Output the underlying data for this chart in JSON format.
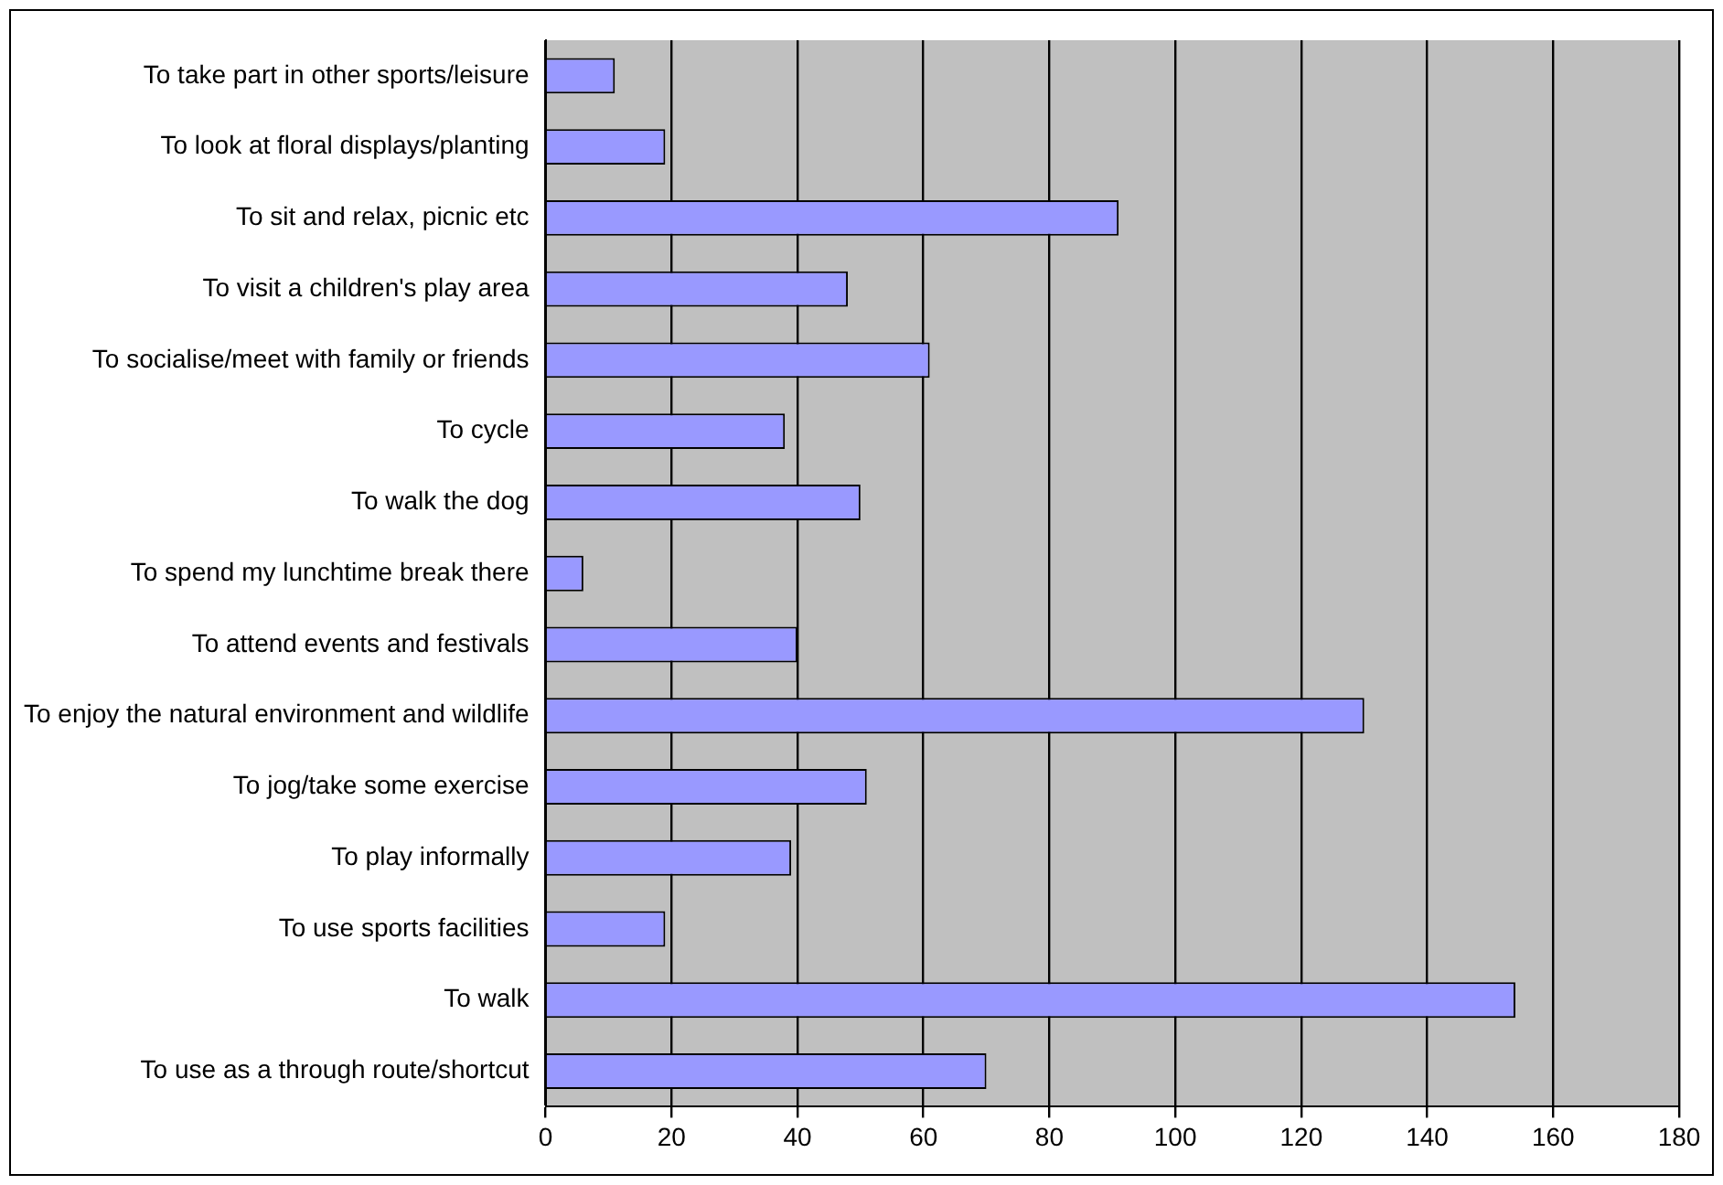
{
  "chart_data": {
    "type": "bar",
    "orientation": "horizontal",
    "categories": [
      "To take part in other sports/leisure",
      "To look at floral displays/planting",
      "To sit and relax, picnic etc",
      "To visit a children's play area",
      "To socialise/meet with family or friends",
      "To cycle",
      "To walk the dog",
      "To spend my lunchtime break there",
      "To attend events and festivals",
      "To enjoy the natural environment and wildlife",
      "To jog/take some exercise",
      "To play informally",
      "To use sports facilities",
      "To walk",
      "To use as a through route/shortcut"
    ],
    "values": [
      11,
      19,
      91,
      48,
      61,
      38,
      50,
      6,
      40,
      130,
      51,
      39,
      19,
      154,
      70
    ],
    "color": "#9999ff",
    "xlim": [
      0,
      180
    ],
    "xticks": [
      0,
      20,
      40,
      60,
      80,
      100,
      120,
      140,
      160,
      180
    ],
    "grid": "x",
    "legend": false
  }
}
